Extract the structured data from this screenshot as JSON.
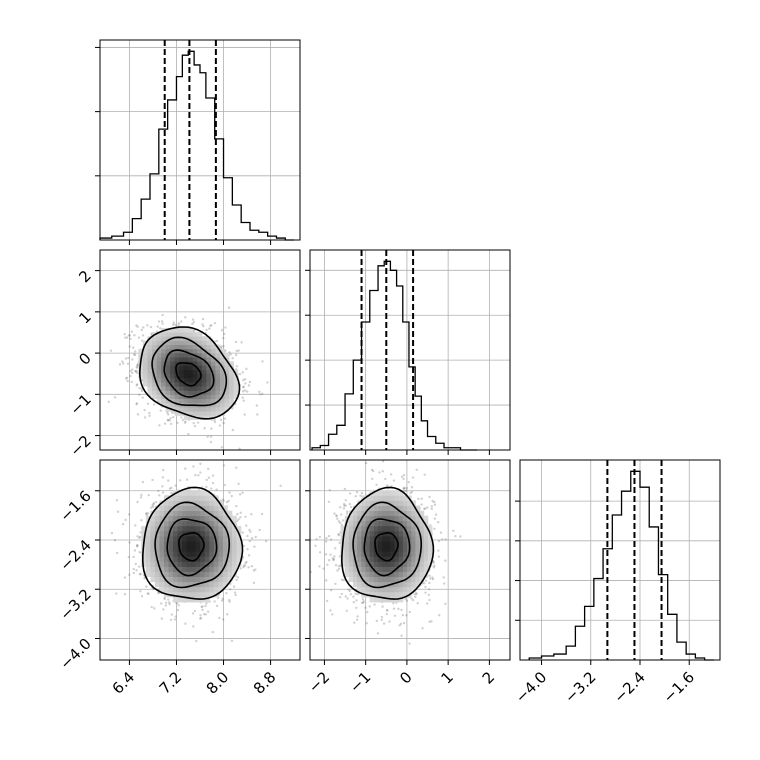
{
  "chart_data": {
    "type": "corner",
    "panel_rows": [
      [
        {
          "kind": "hist",
          "param": 0
        }
      ],
      [
        {
          "kind": "density",
          "x_param": 0,
          "y_param": 1
        },
        {
          "kind": "hist",
          "param": 1
        }
      ],
      [
        {
          "kind": "density",
          "x_param": 0,
          "y_param": 2
        },
        {
          "kind": "density",
          "x_param": 1,
          "y_param": 2
        },
        {
          "kind": "hist",
          "param": 2
        }
      ]
    ],
    "parameters": [
      {
        "name": "",
        "range": [
          5.9,
          9.3
        ],
        "ticks": [
          6.4,
          7.2,
          8.0,
          8.8
        ],
        "tick_labels": [
          "6.4",
          "7.2",
          "8.0",
          "8.8"
        ],
        "quantiles": [
          7.0,
          7.42,
          7.87
        ],
        "bin_edges": [
          5.9,
          6.1,
          6.3,
          6.45,
          6.6,
          6.75,
          6.9,
          7.05,
          7.2,
          7.3,
          7.4,
          7.5,
          7.6,
          7.7,
          7.85,
          8.0,
          8.15,
          8.3,
          8.45,
          8.6,
          8.75,
          8.9,
          9.05,
          9.2
        ],
        "counts": [
          1,
          2,
          4,
          11,
          21,
          34,
          57,
          72,
          84,
          95,
          97,
          90,
          86,
          73,
          52,
          32,
          18,
          9,
          5,
          4,
          2,
          1,
          0
        ],
        "y_ticks": [
          33,
          66,
          99
        ]
      },
      {
        "name": "",
        "range": [
          -2.35,
          2.5
        ],
        "ticks": [
          -2,
          -1,
          0,
          1,
          2
        ],
        "tick_labels": [
          "−2",
          "−1",
          "0",
          "1",
          "2"
        ],
        "quantiles": [
          -1.1,
          -0.5,
          0.15
        ],
        "bin_edges": [
          -2.3,
          -2.1,
          -1.9,
          -1.7,
          -1.5,
          -1.3,
          -1.1,
          -0.9,
          -0.7,
          -0.55,
          -0.4,
          -0.25,
          -0.1,
          0.05,
          0.2,
          0.35,
          0.5,
          0.7,
          0.9,
          1.1,
          1.3,
          1.5,
          1.7
        ],
        "counts": [
          1,
          2,
          7,
          11,
          25,
          40,
          57,
          71,
          82,
          84,
          80,
          73,
          57,
          37,
          24,
          13,
          6,
          3,
          1,
          1,
          0,
          0
        ],
        "y_ticks": [
          20,
          40,
          60,
          80
        ]
      },
      {
        "name": "",
        "range": [
          -4.35,
          -1.1
        ],
        "ticks": [
          -4.0,
          -3.2,
          -2.4,
          -1.6
        ],
        "tick_labels": [
          "−4.0",
          "−3.2",
          "−2.4",
          "−1.6"
        ],
        "quantiles": [
          -2.93,
          -2.49,
          -2.05
        ],
        "bin_edges": [
          -4.2,
          -4.0,
          -3.8,
          -3.6,
          -3.45,
          -3.3,
          -3.15,
          -3.0,
          -2.85,
          -2.7,
          -2.55,
          -2.4,
          -2.25,
          -2.1,
          -1.95,
          -1.8,
          -1.65,
          -1.5,
          -1.35,
          -1.2
        ],
        "counts": [
          1,
          2,
          3,
          7,
          17,
          27,
          41,
          56,
          73,
          85,
          95,
          87,
          67,
          43,
          23,
          9,
          3,
          1,
          0
        ],
        "y_ticks": [
          20,
          40,
          60,
          80
        ]
      }
    ],
    "density": [
      {
        "x_param": 0,
        "y_param": 1,
        "center": [
          7.4,
          -0.5
        ],
        "sigma": [
          0.42,
          0.55
        ],
        "rho": -0.25,
        "contour_levels_sigma": [
          0.5,
          1.0,
          1.5,
          2.0
        ],
        "scatter_points": 1600
      },
      {
        "x_param": 0,
        "y_param": 2,
        "center": [
          7.45,
          -2.5
        ],
        "sigma": [
          0.42,
          0.45
        ],
        "rho": 0.0,
        "contour_levels_sigma": [
          0.5,
          1.0,
          1.5,
          2.0
        ],
        "scatter_points": 1600
      },
      {
        "x_param": 1,
        "y_param": 2,
        "center": [
          -0.5,
          -2.5
        ],
        "sigma": [
          0.55,
          0.45
        ],
        "rho": 0.0,
        "contour_levels_sigma": [
          0.5,
          1.0,
          1.5,
          2.0
        ],
        "scatter_points": 1600
      }
    ],
    "grid": true,
    "colors": {
      "line": "#000000",
      "scatter": "#777777",
      "grid": "#b0b0b0"
    }
  }
}
